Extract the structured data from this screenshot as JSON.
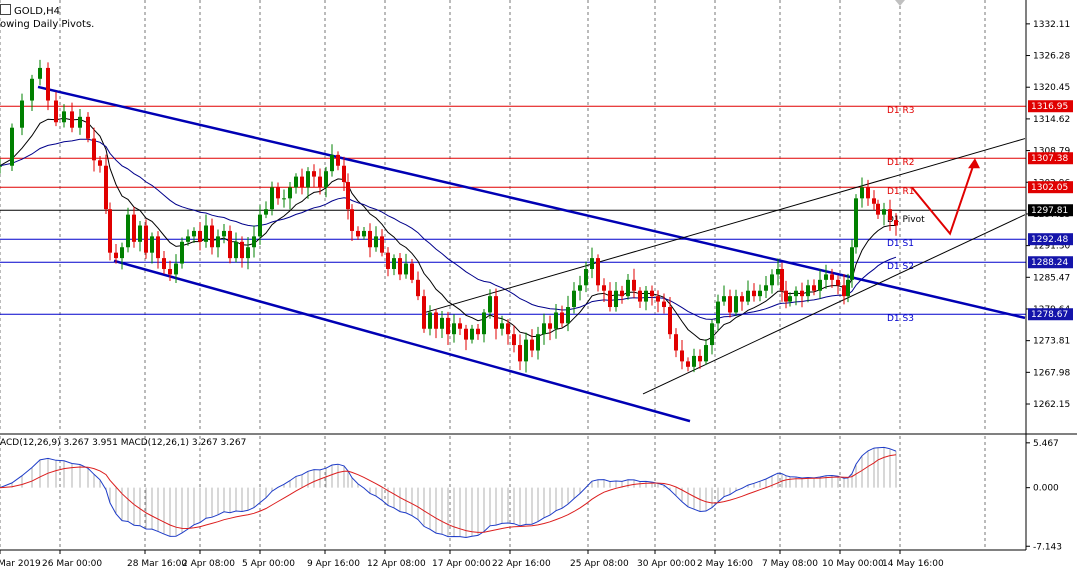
{
  "header": {
    "symbol": "GOLD,H4",
    "indicator": "owing Daily Pivots."
  },
  "macd_header": "ACD(12,26,9) 3.267 3.951 MACD(12,26,1) 3.267 3.267",
  "colors": {
    "background": "#ffffff",
    "bull_candle": "#008000",
    "bear_candle": "#e00000",
    "resistance": "#e00000",
    "support": "#0000cc",
    "channel": "#0000b4",
    "ma_fast": "#000000",
    "ma_slow": "#00008b",
    "macd_line": "#1e3cc8",
    "signal_line": "#dc1e1e",
    "histogram": "#b0b0b0",
    "projection": "#e00000",
    "price_box_red": "#e00000",
    "price_box_blue": "#1414aa"
  },
  "chart_data": {
    "type": "candlestick",
    "instrument": "GOLD",
    "timeframe": "H4",
    "y_range": [
      1257.0,
      1336.5
    ],
    "price_ticks": [
      "1332.11",
      "1326.28",
      "1320.45",
      "1314.62",
      "1308.79",
      "1302.96",
      "1297.13",
      "1291.30",
      "1285.47",
      "1279.64",
      "1273.81",
      "1267.98",
      "1262.15"
    ],
    "time_ticks": [
      "Mar 2019",
      "26 Mar 00:00",
      "28 Mar 16:00",
      "2 Apr 08:00",
      "5 Apr 00:00",
      "9 Apr 16:00",
      "12 Apr 08:00",
      "17 Apr 00:00",
      "22 Apr 16:00",
      "25 Apr 08:00",
      "30 Apr 00:00",
      "2 May 16:00",
      "7 May 08:00",
      "10 May 00:00",
      "14 May 16:00"
    ],
    "pivot_levels": [
      {
        "name": "D1 R3",
        "value": 1316.95,
        "label": "1316.95",
        "kind": "resistance"
      },
      {
        "name": "D1 R2",
        "value": 1307.38,
        "label": "1307.38",
        "kind": "resistance"
      },
      {
        "name": "D1 R1",
        "value": 1302.05,
        "label": "1302.05",
        "kind": "resistance"
      },
      {
        "name": "D1 Pivot",
        "value": 1297.81,
        "label": "1297.81",
        "kind": "pivot"
      },
      {
        "name": "D1 S1",
        "value": 1292.48,
        "label": "1292.48",
        "kind": "support"
      },
      {
        "name": "D1 S2",
        "value": 1288.24,
        "label": "1288.24",
        "kind": "support"
      },
      {
        "name": "D1 S3",
        "value": 1278.67,
        "label": "1278.67",
        "kind": "support"
      }
    ],
    "close_path": [
      [
        0,
        1306
      ],
      [
        12,
        1313
      ],
      [
        22,
        1318
      ],
      [
        32,
        1322
      ],
      [
        40,
        1324
      ],
      [
        48,
        1318
      ],
      [
        56,
        1314
      ],
      [
        64,
        1316
      ],
      [
        72,
        1313
      ],
      [
        80,
        1315
      ],
      [
        88,
        1311
      ],
      [
        94,
        1307
      ],
      [
        100,
        1306
      ],
      [
        106,
        1298
      ],
      [
        110,
        1290
      ],
      [
        116,
        1289
      ],
      [
        122,
        1291
      ],
      [
        128,
        1297
      ],
      [
        134,
        1292
      ],
      [
        140,
        1295
      ],
      [
        146,
        1290
      ],
      [
        152,
        1293
      ],
      [
        158,
        1289
      ],
      [
        164,
        1287
      ],
      [
        170,
        1286
      ],
      [
        176,
        1288
      ],
      [
        182,
        1292
      ],
      [
        188,
        1293
      ],
      [
        194,
        1294
      ],
      [
        200,
        1292
      ],
      [
        206,
        1295
      ],
      [
        212,
        1291
      ],
      [
        218,
        1293
      ],
      [
        224,
        1294
      ],
      [
        230,
        1289
      ],
      [
        236,
        1292
      ],
      [
        242,
        1289
      ],
      [
        248,
        1291
      ],
      [
        254,
        1293
      ],
      [
        260,
        1297
      ],
      [
        266,
        1298
      ],
      [
        272,
        1302
      ],
      [
        278,
        1300
      ],
      [
        284,
        1300
      ],
      [
        290,
        1302
      ],
      [
        296,
        1304
      ],
      [
        302,
        1302
      ],
      [
        308,
        1305
      ],
      [
        314,
        1304
      ],
      [
        320,
        1302
      ],
      [
        326,
        1305
      ],
      [
        332,
        1308
      ],
      [
        338,
        1306
      ],
      [
        344,
        1303
      ],
      [
        348,
        1298
      ],
      [
        352,
        1294
      ],
      [
        358,
        1293
      ],
      [
        364,
        1294
      ],
      [
        370,
        1291
      ],
      [
        376,
        1293
      ],
      [
        382,
        1290
      ],
      [
        388,
        1287
      ],
      [
        394,
        1289
      ],
      [
        400,
        1286
      ],
      [
        406,
        1288
      ],
      [
        412,
        1285
      ],
      [
        418,
        1282
      ],
      [
        424,
        1276
      ],
      [
        430,
        1279
      ],
      [
        436,
        1276
      ],
      [
        442,
        1278
      ],
      [
        448,
        1275
      ],
      [
        454,
        1277
      ],
      [
        460,
        1276
      ],
      [
        466,
        1274
      ],
      [
        472,
        1276
      ],
      [
        478,
        1275
      ],
      [
        484,
        1279
      ],
      [
        490,
        1282
      ],
      [
        496,
        1276
      ],
      [
        502,
        1277
      ],
      [
        508,
        1275
      ],
      [
        514,
        1273
      ],
      [
        520,
        1270
      ],
      [
        526,
        1274
      ],
      [
        532,
        1272
      ],
      [
        538,
        1275
      ],
      [
        544,
        1277
      ],
      [
        550,
        1276
      ],
      [
        556,
        1279
      ],
      [
        562,
        1277
      ],
      [
        568,
        1280
      ],
      [
        574,
        1283
      ],
      [
        580,
        1284
      ],
      [
        586,
        1287
      ],
      [
        592,
        1289
      ],
      [
        598,
        1284
      ],
      [
        604,
        1283
      ],
      [
        610,
        1280
      ],
      [
        616,
        1283
      ],
      [
        622,
        1282
      ],
      [
        628,
        1285
      ],
      [
        634,
        1283
      ],
      [
        640,
        1281
      ],
      [
        646,
        1283
      ],
      [
        652,
        1282
      ],
      [
        658,
        1281
      ],
      [
        664,
        1280
      ],
      [
        670,
        1275
      ],
      [
        676,
        1272
      ],
      [
        682,
        1270
      ],
      [
        688,
        1269
      ],
      [
        694,
        1271
      ],
      [
        700,
        1270
      ],
      [
        706,
        1273
      ],
      [
        712,
        1277
      ],
      [
        718,
        1281
      ],
      [
        724,
        1282
      ],
      [
        730,
        1279
      ],
      [
        736,
        1282
      ],
      [
        742,
        1281
      ],
      [
        748,
        1283
      ],
      [
        754,
        1282
      ],
      [
        760,
        1283
      ],
      [
        766,
        1284
      ],
      [
        772,
        1286
      ],
      [
        778,
        1287
      ],
      [
        782,
        1283
      ],
      [
        786,
        1281
      ],
      [
        790,
        1282
      ],
      [
        796,
        1283
      ],
      [
        802,
        1282
      ],
      [
        808,
        1284
      ],
      [
        814,
        1283
      ],
      [
        820,
        1285
      ],
      [
        826,
        1286
      ],
      [
        832,
        1285
      ],
      [
        838,
        1284
      ],
      [
        844,
        1282
      ],
      [
        848,
        1285
      ],
      [
        852,
        1291
      ],
      [
        856,
        1300
      ],
      [
        862,
        1302
      ],
      [
        868,
        1300
      ],
      [
        874,
        1299
      ],
      [
        878,
        1297
      ],
      [
        884,
        1298
      ],
      [
        890,
        1296
      ],
      [
        896,
        1295
      ]
    ],
    "lines": {
      "upper_channel": [
        [
          38,
          1320.5
        ],
        [
          1025,
          1278
        ]
      ],
      "lower_channel": [
        [
          114,
          1288.5
        ],
        [
          690,
          1259
        ]
      ],
      "rising_support": [
        [
          643,
          1264
        ],
        [
          1025,
          1297
        ]
      ],
      "rising_upper": [
        [
          425,
          1279
        ],
        [
          1025,
          1311
        ]
      ],
      "projection": [
        [
          912,
          1302
        ],
        [
          950,
          1293.5
        ],
        [
          975,
          1307
        ]
      ]
    },
    "macd": {
      "y_range": [
        -7.6,
        6.3
      ],
      "ticks": [
        "5.467",
        "0.000",
        "-7.143"
      ]
    }
  }
}
